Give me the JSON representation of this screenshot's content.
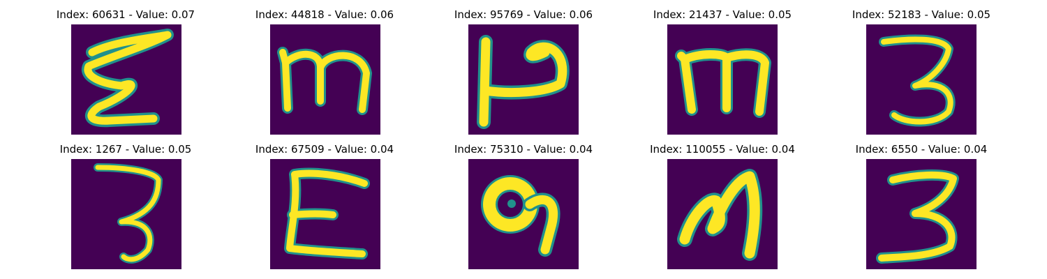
{
  "colors": {
    "background": "#440154",
    "stroke": "#fde725",
    "halo": "#21918c",
    "mid": "#5ec962"
  },
  "panels": [
    {
      "title": "Index: 60631 - Value: 0.07",
      "index": 60631,
      "value": 0.07,
      "glyph": "ezh"
    },
    {
      "title": "Index: 44818 - Value: 0.06",
      "index": 44818,
      "value": 0.06,
      "glyph": "m"
    },
    {
      "title": "Index: 95769 - Value: 0.06",
      "index": 95769,
      "value": 0.06,
      "glyph": "hook-p"
    },
    {
      "title": "Index: 21437 - Value: 0.05",
      "index": 21437,
      "value": 0.05,
      "glyph": "m"
    },
    {
      "title": "Index: 52183 - Value: 0.05",
      "index": 52183,
      "value": 0.05,
      "glyph": "three"
    },
    {
      "title": "Index: 1267 - Value: 0.05",
      "index": 1267,
      "value": 0.05,
      "glyph": "three"
    },
    {
      "title": "Index: 67509 - Value: 0.04",
      "index": 67509,
      "value": 0.04,
      "glyph": "E"
    },
    {
      "title": "Index: 75310 - Value: 0.04",
      "index": 75310,
      "value": 0.04,
      "glyph": "loop-nine"
    },
    {
      "title": "Index: 110055 - Value: 0.04",
      "index": 110055,
      "value": 0.04,
      "glyph": "M"
    },
    {
      "title": "Index: 6550 - Value: 0.04",
      "index": 6550,
      "value": 0.04,
      "glyph": "three"
    }
  ]
}
